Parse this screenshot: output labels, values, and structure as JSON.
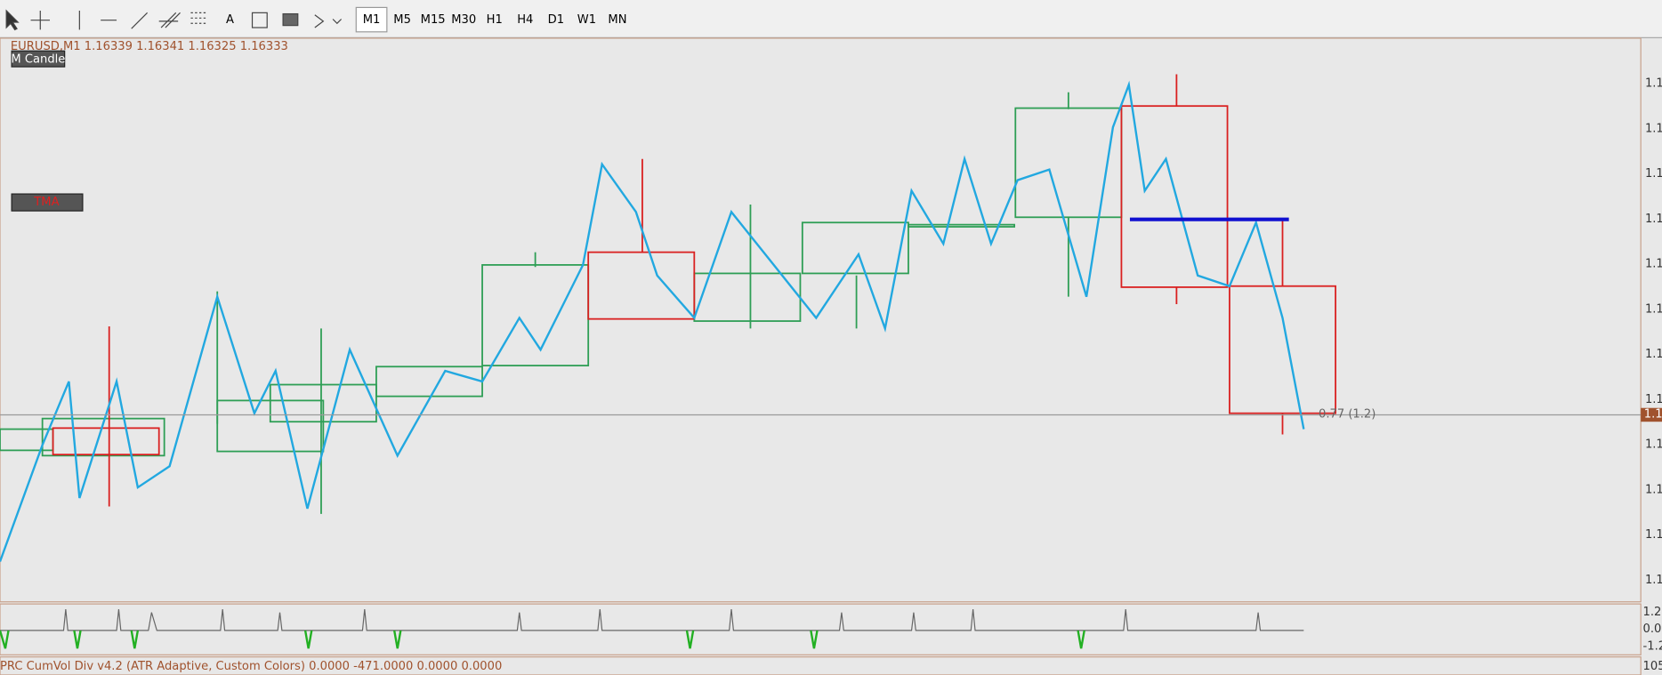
{
  "toolbar": {
    "text_tool": "A",
    "timeframes": [
      "M1",
      "M5",
      "M15",
      "M30",
      "H1",
      "H4",
      "D1",
      "W1",
      "MN"
    ]
  },
  "chart": {
    "header": "EURUSD,M1  1.16339 1.16341 1.16325 1.16333",
    "buttons": [
      "M Candle",
      "TMA"
    ],
    "price_labels": [
      "1.1",
      "1.1",
      "1.1",
      "1.1",
      "1.1",
      "1.1",
      "1.1",
      "1.1",
      "1.1",
      "1.1",
      "1.1",
      "1.1"
    ],
    "current_price": "1.1",
    "annotation": "0.77 (1.2)"
  },
  "indicator": {
    "axis_labels": [
      "1.2",
      "0.00",
      "-1.2"
    ]
  },
  "bottom": {
    "title": "PRC CumVol Div v4.2 (ATR Adaptive, Custom Colors) 0.0000 -471.0000 0.0000 0.0000",
    "axis_label": "105"
  }
}
